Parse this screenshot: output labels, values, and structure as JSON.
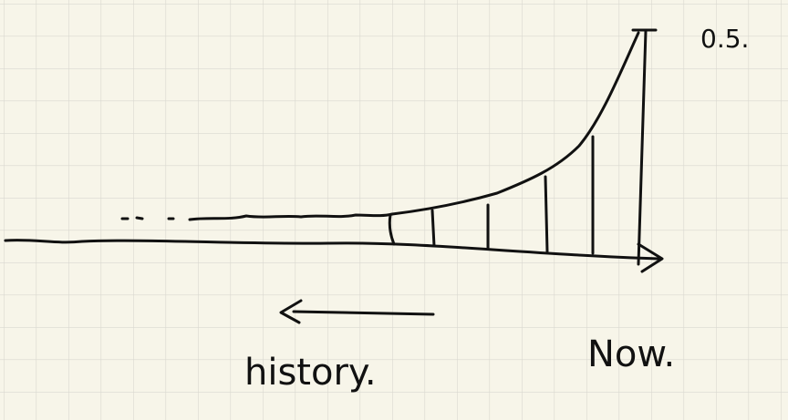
{
  "labels": {
    "top_value": "0.5.",
    "left": "history.",
    "right": "Now."
  }
}
